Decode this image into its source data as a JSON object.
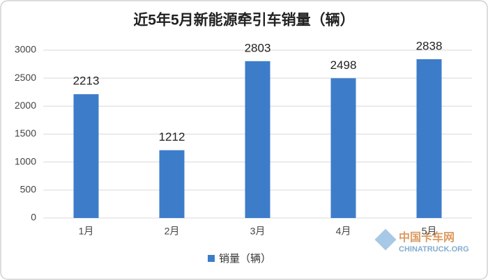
{
  "chart_data": {
    "type": "bar",
    "title": "近5年5月新能源牵引车销量（辆）",
    "categories": [
      "1月",
      "2月",
      "3月",
      "4月",
      "5月"
    ],
    "series": [
      {
        "name": "销量（辆）",
        "color": "#3d7cc9",
        "values": [
          2213,
          1212,
          2803,
          2498,
          2838
        ]
      }
    ],
    "ylim": [
      0,
      3000
    ],
    "yticks": [
      0,
      500,
      1000,
      1500,
      2000,
      2500,
      3000
    ],
    "grid": true,
    "legend": "bottom"
  },
  "watermark": {
    "name": "中国卡车网",
    "site": "CHINATRUCK.ORG"
  }
}
